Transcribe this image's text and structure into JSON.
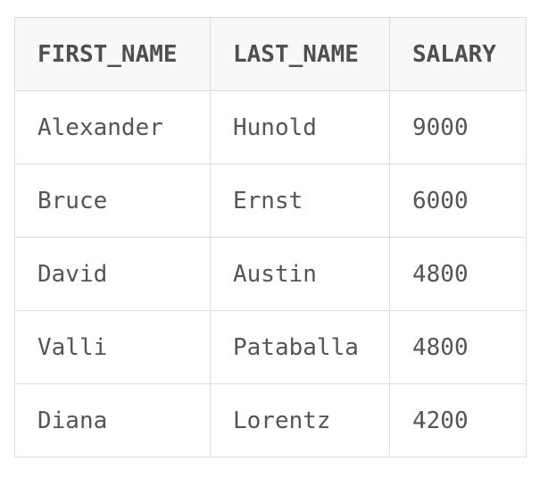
{
  "table": {
    "headers": [
      "FIRST_NAME",
      "LAST_NAME",
      "SALARY"
    ],
    "rows": [
      [
        "Alexander",
        "Hunold",
        "9000"
      ],
      [
        "Bruce",
        "Ernst",
        "6000"
      ],
      [
        "David",
        "Austin",
        "4800"
      ],
      [
        "Valli",
        "Pataballa",
        "4800"
      ],
      [
        "Diana",
        "Lorentz",
        "4200"
      ]
    ]
  },
  "colors": {
    "border": "#dcdcdc",
    "header_background": "#f8f8f8",
    "text": "#555555"
  }
}
